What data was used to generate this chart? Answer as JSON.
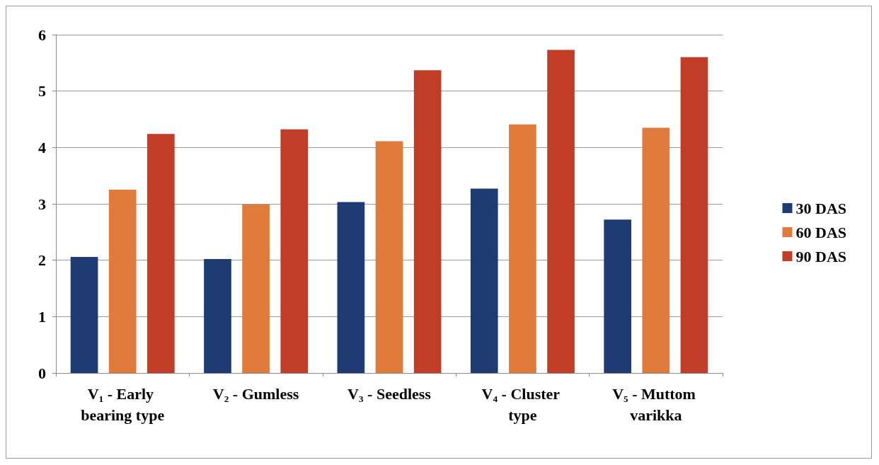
{
  "chart_data": {
    "type": "bar",
    "categories": [
      "V₁ - Early bearing type",
      "V₂ - Gumless",
      "V₃ - Seedless",
      "V₄ - Cluster type",
      "V₅ - Muttom varikka"
    ],
    "series": [
      {
        "name": "30 DAS",
        "color": "#1f3b73",
        "values": [
          2.06,
          2.02,
          3.03,
          3.27,
          2.72
        ]
      },
      {
        "name": "60 DAS",
        "color": "#e07b3c",
        "values": [
          3.25,
          2.99,
          4.11,
          4.41,
          4.35
        ]
      },
      {
        "name": "90 DAS",
        "color": "#c23d26",
        "values": [
          4.24,
          4.32,
          5.37,
          5.73,
          5.6
        ]
      }
    ],
    "ylim": [
      0,
      6
    ],
    "yticks": [
      0,
      1,
      2,
      3,
      4,
      5,
      6
    ],
    "grid": "y",
    "legend": "right"
  }
}
